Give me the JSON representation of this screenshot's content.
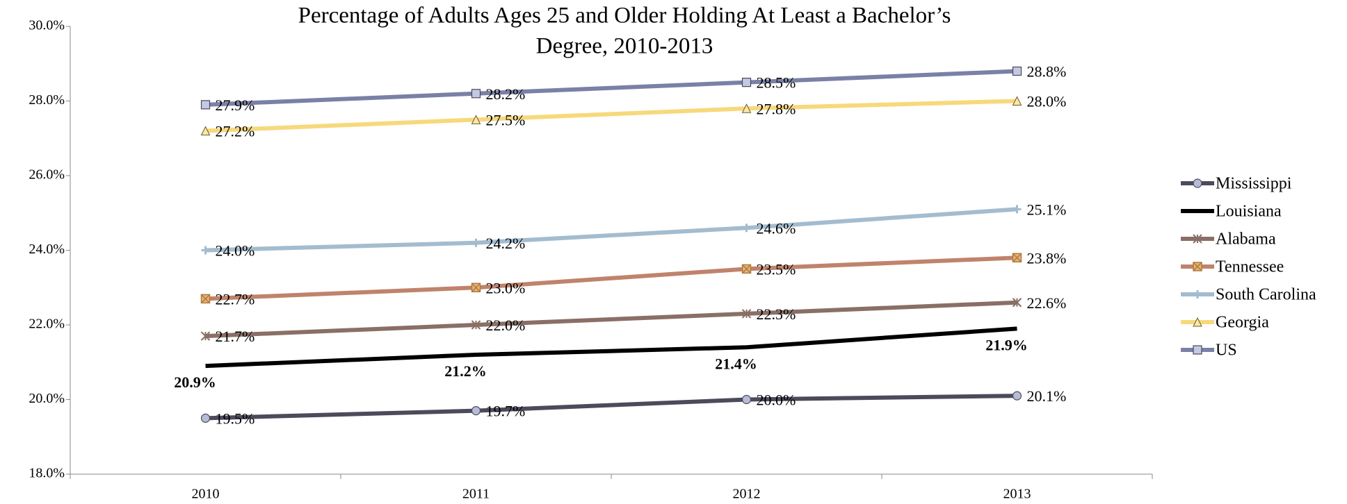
{
  "chart_data": {
    "type": "line",
    "title": [
      "Percentage of Adults Ages 25 and Older Holding At Least a Bachelor’s",
      "Degree, 2010-2013"
    ],
    "categories": [
      "2010",
      "2011",
      "2012",
      "2013"
    ],
    "ylim": [
      18,
      30
    ],
    "yticks": [
      {
        "value": 18,
        "label": "18.0%"
      },
      {
        "value": 20,
        "label": "20.0%"
      },
      {
        "value": 22,
        "label": "22.0%"
      },
      {
        "value": 24,
        "label": "24.0%"
      },
      {
        "value": 26,
        "label": "26.0%"
      },
      {
        "value": 28,
        "label": "28.0%"
      },
      {
        "value": 30,
        "label": "30.0%"
      }
    ],
    "legend": "right",
    "series": [
      {
        "name": "Mississippi",
        "color": "#4b4b5c",
        "marker": "circle",
        "values": [
          19.5,
          19.7,
          20.0,
          20.1
        ],
        "value_labels": [
          "19.5%",
          "19.7%",
          "20.0%",
          "20.1%"
        ]
      },
      {
        "name": "Louisiana",
        "color": "#000000",
        "marker": "none",
        "values": [
          20.9,
          21.2,
          21.4,
          21.9
        ],
        "value_labels": [
          "20.9%",
          "21.2%",
          "21.4%",
          "21.9%"
        ]
      },
      {
        "name": "Alabama",
        "color": "#8a6f66",
        "marker": "star",
        "values": [
          21.7,
          22.0,
          22.3,
          22.6
        ],
        "value_labels": [
          "21.7%",
          "22.0%",
          "22.3%",
          "22.6%"
        ]
      },
      {
        "name": "Tennessee",
        "color": "#bf836c",
        "marker": "xbox",
        "values": [
          22.7,
          23.0,
          23.5,
          23.8
        ],
        "value_labels": [
          "22.7%",
          "23.0%",
          "23.5%",
          "23.8%"
        ]
      },
      {
        "name": "South Carolina",
        "color": "#a3bccf",
        "marker": "plus",
        "values": [
          24.0,
          24.2,
          24.6,
          25.1
        ],
        "value_labels": [
          "24.0%",
          "24.2%",
          "24.6%",
          "25.1%"
        ]
      },
      {
        "name": "Georgia",
        "color": "#f7d97c",
        "marker": "triangle",
        "values": [
          27.2,
          27.5,
          27.8,
          28.0
        ],
        "value_labels": [
          "27.2%",
          "27.5%",
          "27.8%",
          "28.0%"
        ]
      },
      {
        "name": "US",
        "color": "#7a80a6",
        "marker": "square",
        "values": [
          27.9,
          28.2,
          28.5,
          28.8
        ],
        "value_labels": [
          "27.9%",
          "28.2%",
          "28.5%",
          "28.8%"
        ]
      }
    ]
  }
}
